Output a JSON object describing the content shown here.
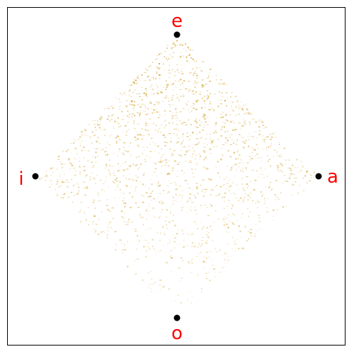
{
  "diagram": {
    "vertices": [
      {
        "key": "top",
        "label": "e"
      },
      {
        "key": "right",
        "label": "a"
      },
      {
        "key": "bottom",
        "label": "o"
      },
      {
        "key": "left",
        "label": "i"
      }
    ],
    "vertex_color": "#000000",
    "label_color": "#ff0000",
    "point_color": "#d4a32a",
    "frame_color": "#000000"
  }
}
